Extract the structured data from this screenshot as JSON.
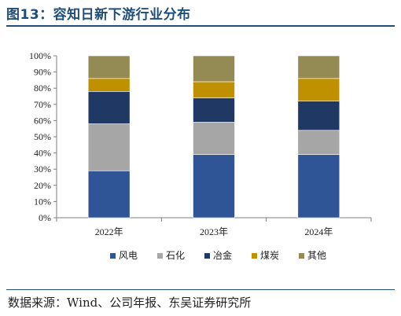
{
  "title": "图13：容知日新下游行业分布",
  "source": "数据来源：Wind、公司年报、东吴证券研究所",
  "colors": {
    "风电": "#2f5597",
    "石化": "#a6a6a6",
    "冶金": "#1f3864",
    "煤炭": "#bf9000",
    "其他": "#948a54"
  },
  "chart_data": {
    "type": "bar",
    "stacked": true,
    "categories": [
      "2022年",
      "2023年",
      "2024年"
    ],
    "series": [
      {
        "name": "风电",
        "values": [
          29,
          39,
          39
        ]
      },
      {
        "name": "石化",
        "values": [
          29,
          20,
          15
        ]
      },
      {
        "name": "冶金",
        "values": [
          20,
          15,
          18
        ]
      },
      {
        "name": "煤炭",
        "values": [
          8,
          10,
          14
        ]
      },
      {
        "name": "其他",
        "values": [
          14,
          16,
          14
        ]
      }
    ],
    "yticks": [
      "0%",
      "10%",
      "20%",
      "30%",
      "40%",
      "50%",
      "60%",
      "70%",
      "80%",
      "90%",
      "100%"
    ],
    "ylim": [
      0,
      100
    ],
    "legend": "bottom",
    "grid": false
  }
}
